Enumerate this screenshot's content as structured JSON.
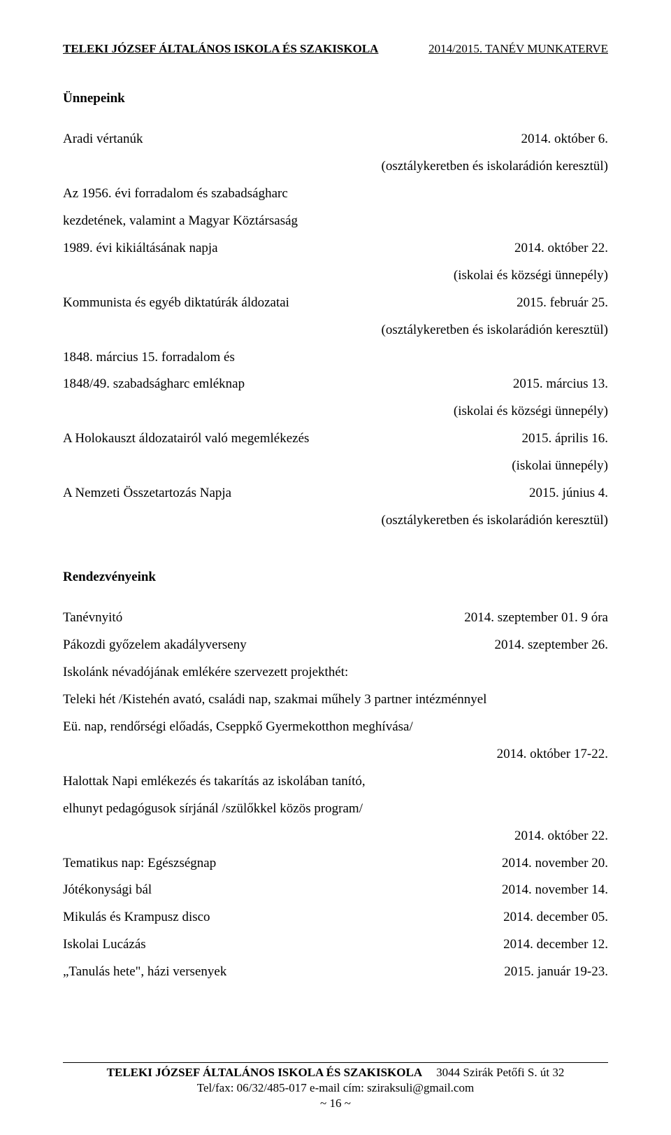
{
  "header": {
    "left": "TELEKI JÓZSEF ÁLTALÁNOS ISKOLA ÉS SZAKISKOLA",
    "right": "2014/2015. TANÉV MUNKATERVE"
  },
  "s1": {
    "title": "Ünnepeink",
    "r1l": "Aradi vértanúk",
    "r1r": "2014. október 6.",
    "r2r": "(osztálykeretben és iskolarádión keresztül)",
    "r3l": "Az 1956. évi forradalom és szabadságharc",
    "r4l": "kezdetének, valamint  a Magyar Köztársaság",
    "r5l": "1989. évi kikiáltásának napja",
    "r5r": "2014. október 22.",
    "r6r": "(iskolai és községi ünnepély)",
    "r7l": "Kommunista és egyéb diktatúrák áldozatai",
    "r7r": "2015. február 25.",
    "r8r": "(osztálykeretben és iskolarádión keresztül)",
    "r9l": "1848. március 15. forradalom és",
    "r10l": "1848/49. szabadságharc emléknap",
    "r10r": "2015. március 13.",
    "r11r": "(iskolai és községi ünnepély)",
    "r12l": "A Holokauszt áldozatairól való megemlékezés",
    "r12r": "2015. április 16.",
    "r13r": "(iskolai ünnepély)",
    "r14l": "A Nemzeti Összetartozás Napja",
    "r14r": "2015. június 4.",
    "r15r": "(osztálykeretben és iskolarádión keresztül)"
  },
  "s2": {
    "title": "Rendezvényeink",
    "r1l": "Tanévnyitó",
    "r1r": "2014. szeptember 01. 9 óra",
    "r2l": "Pákozdi győzelem akadályverseny",
    "r2r": "2014. szeptember 26.",
    "r3l": "Iskolánk névadójának emlékére szervezett projekthét:",
    "r4l": "Teleki hét /Kistehén avató, családi nap, szakmai műhely 3 partner intézménnyel",
    "r5l": "Eü. nap, rendőrségi előadás, Cseppkő Gyermekotthon meghívása/",
    "r6r": "2014. október 17-22.",
    "r7l": "Halottak Napi emlékezés és takarítás az iskolában tanító,",
    "r8l": " elhunyt pedagógusok sírjánál /szülőkkel     közös program/",
    "r9r": "2014. október 22.",
    "r10l": "Tematikus nap: Egészségnap",
    "r10r": "2014. november 20.",
    "r11l": "Jótékonysági bál",
    "r11r": "2014. november 14.",
    "r12l": "Mikulás és Krampusz disco",
    "r12r": "2014. december 05.",
    "r13l": "Iskolai Lucázás",
    "r13r": "2014. december 12.",
    "r14l": "„Tanulás hete\", házi versenyek",
    "r14r": "2015. január 19-23."
  },
  "footer": {
    "org": "TELEKI JÓZSEF ÁLTALÁNOS ISKOLA ÉS SZAKISKOLA",
    "addr": "3044  Szirák Petőfi S. út 32",
    "contact": "Tel/fax: 06/32/485-017  e-mail cím: sziraksuli@gmail.com",
    "page": "~ 16 ~"
  }
}
